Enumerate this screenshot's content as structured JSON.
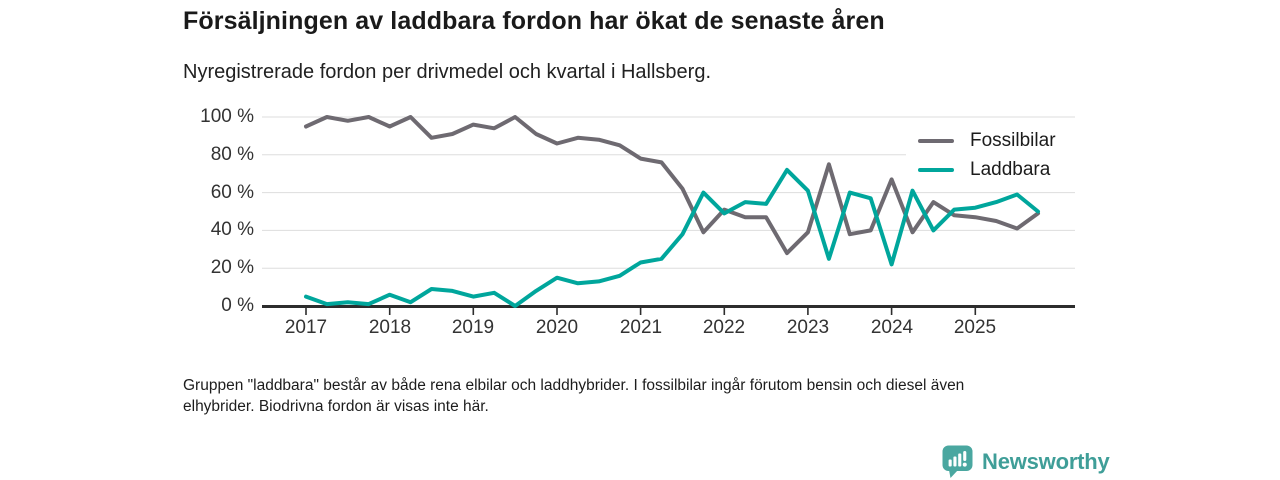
{
  "header": {
    "title": "Försäljningen av laddbara fordon har ökat de senaste åren",
    "subtitle": "Nyregistrerade fordon per drivmedel och kvartal i Hallsberg."
  },
  "chart_data": {
    "type": "line",
    "x_unit": "quarter",
    "x": [
      "2017 Q1",
      "2017 Q2",
      "2017 Q3",
      "2017 Q4",
      "2018 Q1",
      "2018 Q2",
      "2018 Q3",
      "2018 Q4",
      "2019 Q1",
      "2019 Q2",
      "2019 Q3",
      "2019 Q4",
      "2020 Q1",
      "2020 Q2",
      "2020 Q3",
      "2020 Q4",
      "2021 Q1",
      "2021 Q2",
      "2021 Q3",
      "2021 Q4",
      "2022 Q1",
      "2022 Q2",
      "2022 Q3",
      "2022 Q4",
      "2023 Q1",
      "2023 Q2",
      "2023 Q3",
      "2023 Q4",
      "2024 Q1",
      "2024 Q2",
      "2024 Q3",
      "2024 Q4",
      "2025 Q1",
      "2025 Q2",
      "2025 Q3",
      "2025 Q4"
    ],
    "x_tick_labels": [
      "2017",
      "2018",
      "2019",
      "2020",
      "2021",
      "2022",
      "2023",
      "2024",
      "2025"
    ],
    "y_ticks": [
      0,
      20,
      40,
      60,
      80,
      100
    ],
    "y_tick_labels": [
      "0 %",
      "20 %",
      "40 %",
      "60 %",
      "80 %",
      "100 %"
    ],
    "ylim": [
      0,
      100
    ],
    "ylabel": "",
    "xlabel": "",
    "grid": "horizontal",
    "legend_position": "top-right",
    "series": [
      {
        "name": "Fossilbilar",
        "color": "#6e6a71",
        "values": [
          95,
          100,
          98,
          100,
          95,
          100,
          89,
          91,
          96,
          94,
          100,
          91,
          86,
          89,
          88,
          85,
          78,
          76,
          62,
          39,
          51,
          47,
          47,
          28,
          39,
          75,
          38,
          40,
          67,
          39,
          55,
          48,
          47,
          45,
          41,
          49
        ]
      },
      {
        "name": "Laddbara",
        "color": "#00a69c",
        "values": [
          5,
          1,
          2,
          1,
          6,
          2,
          9,
          8,
          5,
          7,
          0,
          8,
          15,
          12,
          13,
          16,
          23,
          25,
          38,
          60,
          49,
          55,
          54,
          72,
          61,
          25,
          60,
          57,
          22,
          61,
          40,
          51,
          52,
          55,
          59,
          50
        ]
      }
    ],
    "axis_color": "#2d2d2d",
    "gridline_color": "#dddddd"
  },
  "footnote": {
    "line1": "Gruppen \"laddbara\" består av både rena elbilar och laddhybrider. I fossilbilar ingår förutom bensin och diesel även",
    "line2": "elhybrider. Biodrivna fordon är visas inte här."
  },
  "footer": {
    "brand": "Newsworthy",
    "brand_color": "#3f9e98",
    "icon_color": "#4aa7a0"
  }
}
